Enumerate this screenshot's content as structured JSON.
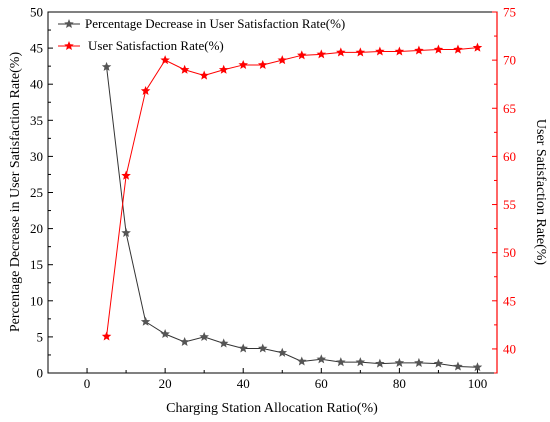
{
  "chart_data": {
    "type": "line",
    "xlabel": "Charging Station Allocation Ratio(%)",
    "xlim": [
      -10,
      105
    ],
    "x_ticks": [
      0,
      20,
      40,
      60,
      80,
      100
    ],
    "x": [
      5,
      10,
      15,
      20,
      25,
      30,
      35,
      40,
      45,
      50,
      55,
      60,
      65,
      70,
      75,
      80,
      85,
      90,
      95,
      100
    ],
    "y_left": {
      "label": "Percentage Decrease in User Satisfaction Rate(%)",
      "lim": [
        0,
        50
      ],
      "ticks": [
        0,
        5,
        10,
        15,
        20,
        25,
        30,
        35,
        40,
        45,
        50
      ],
      "color": "#000000"
    },
    "y_right": {
      "label": "User Satisfaction Rate(%)",
      "lim": [
        37.5,
        75
      ],
      "ticks": [
        40,
        45,
        50,
        55,
        60,
        65,
        70,
        75
      ],
      "color": "#ff0000"
    },
    "series": [
      {
        "name": "Percentage Decrease in User Satisfaction Rate(%)",
        "axis": "left",
        "color": "#333333",
        "marker_color": "#555555",
        "values": [
          42.4,
          19.4,
          7.1,
          5.4,
          4.3,
          5.0,
          4.1,
          3.4,
          3.4,
          2.8,
          1.6,
          1.9,
          1.5,
          1.5,
          1.3,
          1.4,
          1.4,
          1.3,
          0.9,
          0.8
        ]
      },
      {
        "name": "User Satisfaction Rate(%)",
        "axis": "right",
        "color": "#ff0000",
        "marker_color": "#ff0000",
        "values": [
          41.3,
          58.0,
          66.8,
          70.0,
          69.0,
          68.4,
          69.0,
          69.5,
          69.5,
          70.0,
          70.5,
          70.6,
          70.8,
          70.8,
          70.9,
          70.9,
          71.0,
          71.1,
          71.1,
          71.3
        ]
      }
    ],
    "grid": false,
    "legend_position": "top-left"
  }
}
